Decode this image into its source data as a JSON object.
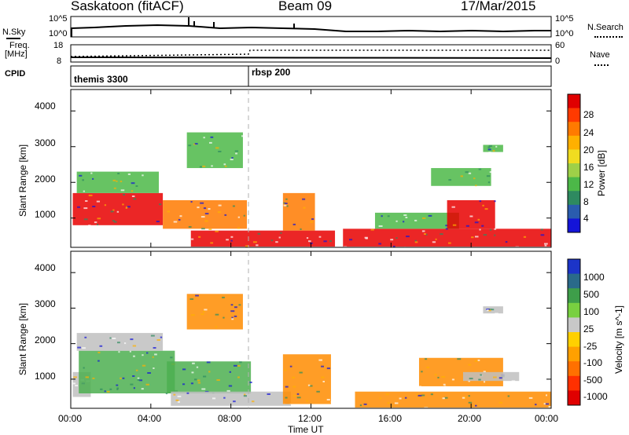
{
  "header": {
    "station": "Saskatoon (fitACF)",
    "beam": "Beam 09",
    "date": "17/Mar/2015"
  },
  "top_panels": {
    "nsky_label": "N.Sky",
    "nsky_ticks": [
      "10^5",
      "10^0"
    ],
    "nsearch_label": "N.Search",
    "nsearch_ticks": [
      "10^5",
      "10^0"
    ],
    "freq_label_1": "Freq.",
    "freq_label_2": "[MHz]",
    "freq_ticks": [
      "18",
      "8"
    ],
    "nave_label": "Nave",
    "nave_ticks": [
      "60",
      "0"
    ],
    "cpid_label": "CPID",
    "cpid_segments": [
      {
        "name": "themis 3300",
        "start": "00:00",
        "end": "09:00"
      },
      {
        "name": "rbsp 200",
        "start": "09:00",
        "end": "24:00"
      }
    ]
  },
  "chart_data": [
    {
      "type": "heatmap",
      "title": "",
      "ylabel": "Slant Range [km]",
      "xlabel": "Time UT",
      "ylim": [
        180,
        4600
      ],
      "y_ticks": [
        "4000",
        "3000",
        "2000",
        "1000"
      ],
      "x_ticks": [
        "00:00",
        "04:00",
        "08:00",
        "12:00",
        "16:00",
        "20:00",
        "00:00"
      ],
      "colorbar": {
        "label": "Power [dB]",
        "ticks": [
          "28",
          "24",
          "20",
          "16",
          "12",
          "8",
          "4"
        ],
        "colors": [
          "#e00000",
          "#ff3a00",
          "#ff7a00",
          "#ffb000",
          "#f0dc20",
          "#9ed048",
          "#4cb848",
          "#2e8a60",
          "#2a5cae",
          "#1414d8"
        ]
      },
      "echo_regions": [
        {
          "t0": 0.1,
          "t1": 4.6,
          "r0": 800,
          "r1": 1700,
          "level": "high"
        },
        {
          "t0": 0.3,
          "t1": 4.4,
          "r0": 1700,
          "r1": 2300,
          "level": "low"
        },
        {
          "t0": 4.6,
          "t1": 8.8,
          "r0": 700,
          "r1": 1500,
          "level": "mid"
        },
        {
          "t0": 6.0,
          "t1": 13.2,
          "r0": 200,
          "r1": 650,
          "level": "high"
        },
        {
          "t0": 10.6,
          "t1": 12.2,
          "r0": 650,
          "r1": 1700,
          "level": "mid"
        },
        {
          "t0": 13.6,
          "t1": 24.0,
          "r0": 200,
          "r1": 700,
          "level": "high"
        },
        {
          "t0": 15.2,
          "t1": 19.4,
          "r0": 700,
          "r1": 1150,
          "level": "low"
        },
        {
          "t0": 18.8,
          "t1": 21.2,
          "r0": 700,
          "r1": 1500,
          "level": "high"
        },
        {
          "t0": 5.8,
          "t1": 8.6,
          "r0": 2400,
          "r1": 3400,
          "level": "low"
        },
        {
          "t0": 18.0,
          "t1": 21.0,
          "r0": 1900,
          "r1": 2400,
          "level": "low"
        },
        {
          "t0": 20.6,
          "t1": 21.6,
          "r0": 2850,
          "r1": 3050,
          "level": "low"
        }
      ]
    },
    {
      "type": "heatmap",
      "title": "",
      "ylabel": "Slant Range [km]",
      "xlabel": "Time UT",
      "ylim": [
        180,
        4600
      ],
      "y_ticks": [
        "4000",
        "3000",
        "2000",
        "1000"
      ],
      "x_ticks": [
        "00:00",
        "04:00",
        "08:00",
        "12:00",
        "16:00",
        "20:00",
        "00:00"
      ],
      "colorbar": {
        "label": "Velocity [m s^-1]",
        "ticks": [
          "1000",
          "500",
          "100",
          "25",
          "-25",
          "-100",
          "-500",
          "-1000"
        ],
        "colors": [
          "#1c34c8",
          "#2a6a8a",
          "#3e9e4a",
          "#78d040",
          "#c8c8c8",
          "#ffd000",
          "#ffa000",
          "#ff7000",
          "#ff3000",
          "#e00000"
        ]
      },
      "echo_regions": [
        {
          "t0": 0.1,
          "t1": 1.0,
          "r0": 500,
          "r1": 1200,
          "level": "gray"
        },
        {
          "t0": 0.4,
          "t1": 5.2,
          "r0": 600,
          "r1": 1800,
          "level": "green"
        },
        {
          "t0": 4.8,
          "t1": 9.0,
          "r0": 600,
          "r1": 1500,
          "level": "green"
        },
        {
          "t0": 5.0,
          "t1": 11.0,
          "r0": 250,
          "r1": 650,
          "level": "gray"
        },
        {
          "t0": 10.6,
          "t1": 13.0,
          "r0": 300,
          "r1": 1700,
          "level": "orange"
        },
        {
          "t0": 14.2,
          "t1": 24.0,
          "r0": 200,
          "r1": 650,
          "level": "orange"
        },
        {
          "t0": 17.4,
          "t1": 21.6,
          "r0": 800,
          "r1": 1600,
          "level": "orange"
        },
        {
          "t0": 19.6,
          "t1": 22.4,
          "r0": 950,
          "r1": 1200,
          "level": "gray"
        },
        {
          "t0": 0.3,
          "t1": 4.6,
          "r0": 1800,
          "r1": 2300,
          "level": "gray"
        },
        {
          "t0": 5.8,
          "t1": 8.6,
          "r0": 2400,
          "r1": 3400,
          "level": "orange"
        },
        {
          "t0": 20.6,
          "t1": 21.6,
          "r0": 2850,
          "r1": 3050,
          "level": "gray"
        }
      ]
    }
  ],
  "colors": {
    "power_high": "#e80000",
    "power_mid": "#ff7a00",
    "power_low": "#4cb848",
    "vel_gray": "#c0c0c0",
    "vel_green": "#4caf50",
    "vel_orange": "#ff8c00",
    "cpid_boundary": "#a0a0a0"
  }
}
